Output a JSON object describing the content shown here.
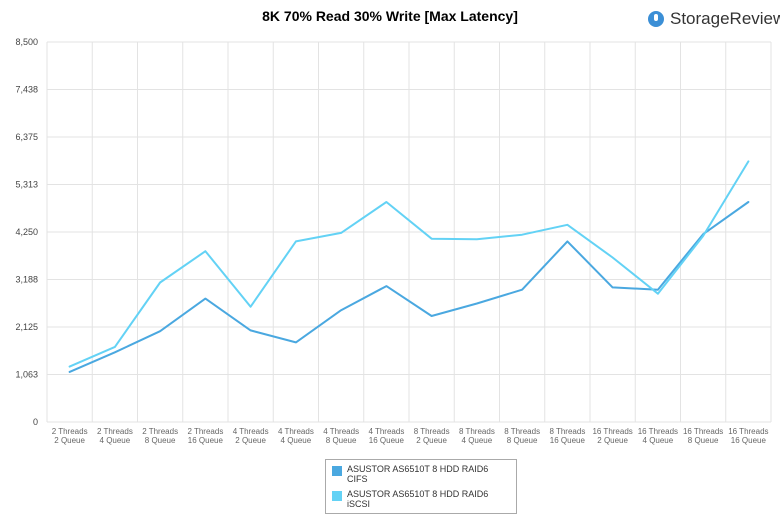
{
  "header": {
    "brand_name": "StorageReview"
  },
  "chart_data": {
    "type": "line",
    "title": "8K 70% Read 30% Write [Max Latency]",
    "xlabel": "",
    "ylabel": "",
    "categories": [
      "2 Threads 2 Queue",
      "2 Threads 4 Queue",
      "2 Threads 8 Queue",
      "2 Threads 16 Queue",
      "4 Threads 2 Queue",
      "4 Threads 4 Queue",
      "4 Threads 8 Queue",
      "4 Threads 16 Queue",
      "8 Threads 2 Queue",
      "8 Threads 4 Queue",
      "8 Threads 8 Queue",
      "8 Threads 16 Queue",
      "16 Threads 2 Queue",
      "16 Threads 4 Queue",
      "16 Threads 8 Queue",
      "16 Threads 16 Queue"
    ],
    "x_tick_labels": [
      [
        "2 Threads",
        "2 Queue"
      ],
      [
        "2 Threads",
        "4 Queue"
      ],
      [
        "2 Threads",
        "8 Queue"
      ],
      [
        "2 Threads",
        "16 Queue"
      ],
      [
        "4 Threads",
        "2 Queue"
      ],
      [
        "4 Threads",
        "4 Queue"
      ],
      [
        "4 Threads",
        "8 Queue"
      ],
      [
        "4 Threads",
        "16 Queue"
      ],
      [
        "8 Threads",
        "2 Queue"
      ],
      [
        "8 Threads",
        "4 Queue"
      ],
      [
        "8 Threads",
        "8 Queue"
      ],
      [
        "8 Threads",
        "16 Queue"
      ],
      [
        "16 Threads",
        "2 Queue"
      ],
      [
        "16 Threads",
        "4 Queue"
      ],
      [
        "16 Threads",
        "8 Queue"
      ],
      [
        "16 Threads",
        "16 Queue"
      ]
    ],
    "y_ticks": [
      "0",
      "1,063",
      "2,125",
      "3,188",
      "4,250",
      "5,313",
      "6,375",
      "7,438",
      "8,500"
    ],
    "ylim": [
      0,
      8500
    ],
    "grid": true,
    "legend_position": "bottom",
    "series": [
      {
        "name": "ASUSTOR AS6510T 8 HDD RAID6 CIFS",
        "color": "#4aa8e0",
        "values": [
          1120,
          1560,
          2030,
          2760,
          2050,
          1780,
          2500,
          3040,
          2370,
          2650,
          2960,
          4040,
          3010,
          2960,
          4200,
          4920
        ]
      },
      {
        "name": "ASUSTOR AS6510T 8 HDD RAID6 iSCSI",
        "color": "#63d2f5",
        "values": [
          1240,
          1680,
          3120,
          3820,
          2580,
          4040,
          4230,
          4920,
          4100,
          4090,
          4190,
          4410,
          3680,
          2870,
          4160,
          5830
        ]
      }
    ]
  }
}
